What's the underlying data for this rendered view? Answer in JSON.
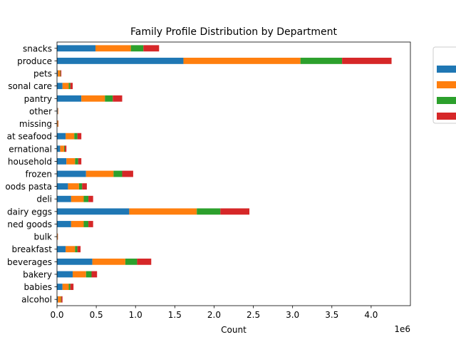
{
  "chart_data": {
    "type": "bar",
    "orientation": "horizontal",
    "stacked": true,
    "title": "Family Profile Distribution by Department",
    "xlabel": "Count",
    "ylabel": "",
    "x_offset_label": "1e6",
    "xlim": [
      0,
      4500000
    ],
    "x_ticks": [
      0,
      500000,
      1000000,
      1500000,
      2000000,
      2500000,
      3000000,
      3500000,
      4000000
    ],
    "x_tick_labels": [
      "0.0",
      "0.5",
      "1.0",
      "1.5",
      "2.0",
      "2.5",
      "3.0",
      "3.5",
      "4.0"
    ],
    "grid": false,
    "legend_position": "right",
    "categories": [
      "alcohol",
      "babies",
      "bakery",
      "beverages",
      "breakfast",
      "bulk",
      "canned goods",
      "dairy eggs",
      "deli",
      "dry goods pasta",
      "frozen",
      "household",
      "international",
      "meat seafood",
      "missing",
      "other",
      "pantry",
      "personal care",
      "pets",
      "produce",
      "snacks"
    ],
    "category_labels_visible": [
      "alcohol",
      "babies",
      "bakery",
      "beverages",
      "breakfast",
      "bulk",
      "ned goods",
      "dairy eggs",
      "deli",
      "oods pasta",
      "frozen",
      "household",
      "ernational",
      "at seafood",
      "missing",
      "other",
      "pantry",
      "sonal care",
      "pets",
      "produce",
      "snacks"
    ],
    "series": [
      {
        "color": "#1f77b4",
        "values": [
          10000,
          70000,
          200000,
          450000,
          110000,
          4000,
          180000,
          920000,
          180000,
          140000,
          370000,
          120000,
          40000,
          110000,
          5000,
          8000,
          310000,
          70000,
          10000,
          1610000,
          490000
        ]
      },
      {
        "color": "#ff7f0e",
        "values": [
          40000,
          80000,
          170000,
          420000,
          120000,
          5000,
          160000,
          860000,
          160000,
          140000,
          350000,
          110000,
          50000,
          110000,
          9000,
          5000,
          300000,
          80000,
          30000,
          1490000,
          450000
        ]
      },
      {
        "color": "#2ca02c",
        "values": [
          5000,
          20000,
          70000,
          150000,
          30000,
          1000,
          60000,
          300000,
          60000,
          40000,
          110000,
          40000,
          10000,
          40000,
          2000,
          1000,
          100000,
          20000,
          5000,
          530000,
          160000
        ]
      },
      {
        "color": "#d62728",
        "values": [
          15000,
          40000,
          70000,
          180000,
          40000,
          2000,
          60000,
          370000,
          60000,
          60000,
          140000,
          40000,
          20000,
          50000,
          3000,
          2000,
          120000,
          30000,
          10000,
          630000,
          200000
        ]
      }
    ]
  }
}
